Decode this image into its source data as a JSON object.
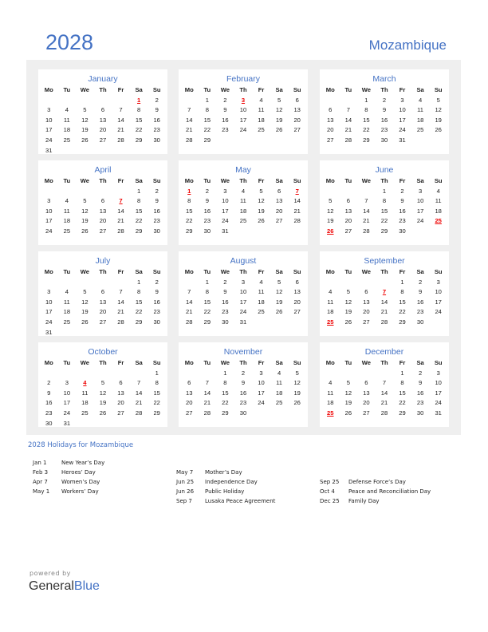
{
  "header": {
    "year": "2028",
    "country": "Mozambique"
  },
  "weekdays": [
    "Mo",
    "Tu",
    "We",
    "Th",
    "Fr",
    "Sa",
    "Su"
  ],
  "colors": {
    "accent": "#4472c4",
    "holiday": "#ee0000",
    "panel": "#efefef"
  },
  "months": [
    {
      "name": "January",
      "holidays": [
        "1"
      ],
      "weeks": [
        [
          "",
          "",
          "",
          "",
          "",
          "1",
          "2"
        ],
        [
          "3",
          "4",
          "5",
          "6",
          "7",
          "8",
          "9"
        ],
        [
          "10",
          "11",
          "12",
          "13",
          "14",
          "15",
          "16"
        ],
        [
          "17",
          "18",
          "19",
          "20",
          "21",
          "22",
          "23"
        ],
        [
          "24",
          "25",
          "26",
          "27",
          "28",
          "29",
          "30"
        ],
        [
          "31"
        ]
      ]
    },
    {
      "name": "February",
      "holidays": [
        "3"
      ],
      "weeks": [
        [
          "",
          "1",
          "2",
          "3",
          "4",
          "5",
          "6"
        ],
        [
          "7",
          "8",
          "9",
          "10",
          "11",
          "12",
          "13"
        ],
        [
          "14",
          "15",
          "16",
          "17",
          "18",
          "19",
          "20"
        ],
        [
          "21",
          "22",
          "23",
          "24",
          "25",
          "26",
          "27"
        ],
        [
          "28",
          "29"
        ]
      ]
    },
    {
      "name": "March",
      "holidays": [],
      "weeks": [
        [
          "",
          "",
          "1",
          "2",
          "3",
          "4",
          "5"
        ],
        [
          "6",
          "7",
          "8",
          "9",
          "10",
          "11",
          "12"
        ],
        [
          "13",
          "14",
          "15",
          "16",
          "17",
          "18",
          "19"
        ],
        [
          "20",
          "21",
          "22",
          "23",
          "24",
          "25",
          "26"
        ],
        [
          "27",
          "28",
          "29",
          "30",
          "31"
        ]
      ]
    },
    {
      "name": "April",
      "holidays": [
        "7"
      ],
      "weeks": [
        [
          "",
          "",
          "",
          "",
          "",
          "1",
          "2"
        ],
        [
          "3",
          "4",
          "5",
          "6",
          "7",
          "8",
          "9"
        ],
        [
          "10",
          "11",
          "12",
          "13",
          "14",
          "15",
          "16"
        ],
        [
          "17",
          "18",
          "19",
          "20",
          "21",
          "22",
          "23"
        ],
        [
          "24",
          "25",
          "26",
          "27",
          "28",
          "29",
          "30"
        ]
      ]
    },
    {
      "name": "May",
      "holidays": [
        "1",
        "7"
      ],
      "weeks": [
        [
          "1",
          "2",
          "3",
          "4",
          "5",
          "6",
          "7"
        ],
        [
          "8",
          "9",
          "10",
          "11",
          "12",
          "13",
          "14"
        ],
        [
          "15",
          "16",
          "17",
          "18",
          "19",
          "20",
          "21"
        ],
        [
          "22",
          "23",
          "24",
          "25",
          "26",
          "27",
          "28"
        ],
        [
          "29",
          "30",
          "31"
        ]
      ]
    },
    {
      "name": "June",
      "holidays": [
        "25",
        "26"
      ],
      "weeks": [
        [
          "",
          "",
          "",
          "1",
          "2",
          "3",
          "4"
        ],
        [
          "5",
          "6",
          "7",
          "8",
          "9",
          "10",
          "11"
        ],
        [
          "12",
          "13",
          "14",
          "15",
          "16",
          "17",
          "18"
        ],
        [
          "19",
          "20",
          "21",
          "22",
          "23",
          "24",
          "25"
        ],
        [
          "26",
          "27",
          "28",
          "29",
          "30"
        ]
      ]
    },
    {
      "name": "July",
      "holidays": [],
      "weeks": [
        [
          "",
          "",
          "",
          "",
          "",
          "1",
          "2"
        ],
        [
          "3",
          "4",
          "5",
          "6",
          "7",
          "8",
          "9"
        ],
        [
          "10",
          "11",
          "12",
          "13",
          "14",
          "15",
          "16"
        ],
        [
          "17",
          "18",
          "19",
          "20",
          "21",
          "22",
          "23"
        ],
        [
          "24",
          "25",
          "26",
          "27",
          "28",
          "29",
          "30"
        ],
        [
          "31"
        ]
      ]
    },
    {
      "name": "August",
      "holidays": [],
      "weeks": [
        [
          "",
          "1",
          "2",
          "3",
          "4",
          "5",
          "6"
        ],
        [
          "7",
          "8",
          "9",
          "10",
          "11",
          "12",
          "13"
        ],
        [
          "14",
          "15",
          "16",
          "17",
          "18",
          "19",
          "20"
        ],
        [
          "21",
          "22",
          "23",
          "24",
          "25",
          "26",
          "27"
        ],
        [
          "28",
          "29",
          "30",
          "31"
        ]
      ]
    },
    {
      "name": "September",
      "holidays": [
        "7",
        "25"
      ],
      "weeks": [
        [
          "",
          "",
          "",
          "",
          "1",
          "2",
          "3"
        ],
        [
          "4",
          "5",
          "6",
          "7",
          "8",
          "9",
          "10"
        ],
        [
          "11",
          "12",
          "13",
          "14",
          "15",
          "16",
          "17"
        ],
        [
          "18",
          "19",
          "20",
          "21",
          "22",
          "23",
          "24"
        ],
        [
          "25",
          "26",
          "27",
          "28",
          "29",
          "30"
        ]
      ]
    },
    {
      "name": "October",
      "holidays": [
        "4"
      ],
      "weeks": [
        [
          "",
          "",
          "",
          "",
          "",
          "",
          "1"
        ],
        [
          "2",
          "3",
          "4",
          "5",
          "6",
          "7",
          "8"
        ],
        [
          "9",
          "10",
          "11",
          "12",
          "13",
          "14",
          "15"
        ],
        [
          "16",
          "17",
          "18",
          "19",
          "20",
          "21",
          "22"
        ],
        [
          "23",
          "24",
          "25",
          "26",
          "27",
          "28",
          "29"
        ],
        [
          "30",
          "31"
        ]
      ]
    },
    {
      "name": "November",
      "holidays": [],
      "weeks": [
        [
          "",
          "",
          "1",
          "2",
          "3",
          "4",
          "5"
        ],
        [
          "6",
          "7",
          "8",
          "9",
          "10",
          "11",
          "12"
        ],
        [
          "13",
          "14",
          "15",
          "16",
          "17",
          "18",
          "19"
        ],
        [
          "20",
          "21",
          "22",
          "23",
          "24",
          "25",
          "26"
        ],
        [
          "27",
          "28",
          "29",
          "30"
        ]
      ]
    },
    {
      "name": "December",
      "holidays": [
        "25"
      ],
      "weeks": [
        [
          "",
          "",
          "",
          "",
          "1",
          "2",
          "3"
        ],
        [
          "4",
          "5",
          "6",
          "7",
          "8",
          "9",
          "10"
        ],
        [
          "11",
          "12",
          "13",
          "14",
          "15",
          "16",
          "17"
        ],
        [
          "18",
          "19",
          "20",
          "21",
          "22",
          "23",
          "24"
        ],
        [
          "25",
          "26",
          "27",
          "28",
          "29",
          "30",
          "31"
        ]
      ]
    }
  ],
  "holidays": {
    "title": "2028 Holidays for Mozambique",
    "columns": [
      [
        {
          "date": "Jan 1",
          "name": "New Year’s Day"
        },
        {
          "date": "Feb 3",
          "name": "Heroes’ Day"
        },
        {
          "date": "Apr 7",
          "name": "Women’s Day"
        },
        {
          "date": "May 1",
          "name": "Workers’ Day"
        }
      ],
      [
        {
          "date": "May 7",
          "name": "Mother’s Day"
        },
        {
          "date": "Jun 25",
          "name": "Independence Day"
        },
        {
          "date": "Jun 26",
          "name": "Public Holiday"
        },
        {
          "date": "Sep 7",
          "name": "Lusaka Peace Agreement"
        }
      ],
      [
        {
          "date": "Sep 25",
          "name": "Defense Force’s Day"
        },
        {
          "date": "Oct 4",
          "name": "Peace and Reconciliation Day"
        },
        {
          "date": "Dec 25",
          "name": "Family Day"
        }
      ]
    ]
  },
  "footer": {
    "powered": "powered by",
    "brand_general": "General",
    "brand_blue": "Blue"
  }
}
